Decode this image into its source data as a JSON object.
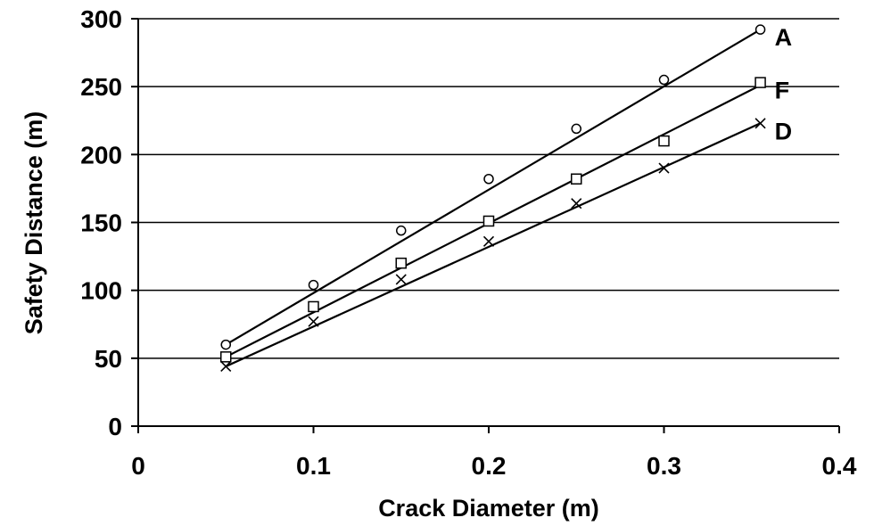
{
  "chart_data": {
    "type": "line",
    "title": "",
    "xlabel": "Crack Diameter (m)",
    "ylabel": "Safety Distance (m)",
    "xlim": [
      0,
      0.4
    ],
    "ylim": [
      0,
      300
    ],
    "x_ticks": [
      0,
      0.1,
      0.2,
      0.3,
      0.4
    ],
    "x_tick_labels": [
      "0",
      "0.1",
      "0.2",
      "0.3",
      "0.4"
    ],
    "y_ticks": [
      0,
      50,
      100,
      150,
      200,
      250,
      300
    ],
    "y_tick_labels": [
      "0",
      "50",
      "100",
      "150",
      "200",
      "250",
      "300"
    ],
    "grid": "horizontal",
    "legend": "inline labels at line ends",
    "series": [
      {
        "name": "A",
        "marker": "circle",
        "points": [
          [
            0.05,
            60
          ],
          [
            0.1,
            104
          ],
          [
            0.15,
            144
          ],
          [
            0.2,
            182
          ],
          [
            0.25,
            219
          ],
          [
            0.3,
            255
          ],
          [
            0.355,
            292
          ]
        ],
        "fit": [
          [
            0.05,
            60
          ],
          [
            0.355,
            292
          ]
        ]
      },
      {
        "name": "F",
        "marker": "square",
        "points": [
          [
            0.05,
            51
          ],
          [
            0.1,
            88
          ],
          [
            0.15,
            120
          ],
          [
            0.2,
            151
          ],
          [
            0.25,
            182
          ],
          [
            0.3,
            210
          ],
          [
            0.355,
            253
          ]
        ],
        "fit": [
          [
            0.05,
            51
          ],
          [
            0.355,
            251
          ]
        ]
      },
      {
        "name": "D",
        "marker": "x",
        "points": [
          [
            0.05,
            44
          ],
          [
            0.1,
            77
          ],
          [
            0.15,
            108
          ],
          [
            0.2,
            136
          ],
          [
            0.25,
            164
          ],
          [
            0.3,
            190
          ],
          [
            0.355,
            223
          ]
        ],
        "fit": [
          [
            0.05,
            44
          ],
          [
            0.355,
            223
          ]
        ]
      }
    ]
  }
}
